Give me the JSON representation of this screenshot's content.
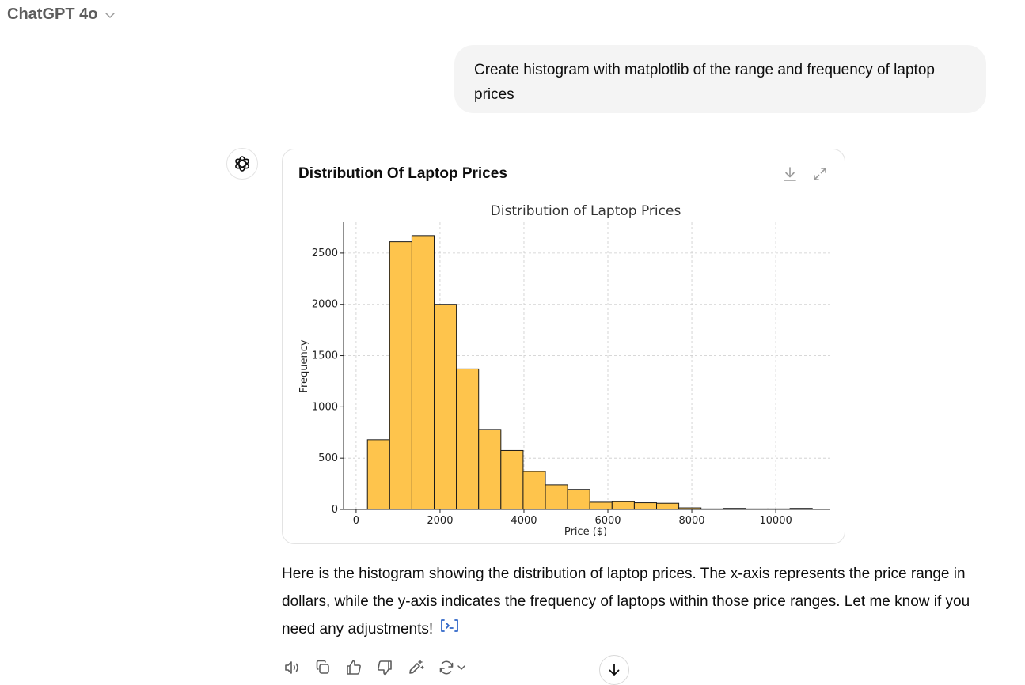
{
  "header": {
    "model_name": "ChatGPT 4o"
  },
  "user_message": "Create histogram with matplotlib of the range and frequency of laptop prices",
  "chart_card": {
    "title": "Distribution Of Laptop Prices"
  },
  "assistant_message": "Here is the histogram showing the distribution of laptop prices. The x-axis represents the price range in dollars, while the y-axis indicates the frequency of laptops within those price ranges. Let me know if you need any adjustments!",
  "icons": {
    "model_dropdown": "chevron-down-icon",
    "avatar": "openai-logo-icon",
    "download": "download-icon",
    "expand": "expand-icon",
    "citation": "code-citation-icon",
    "read_aloud": "speaker-icon",
    "copy": "copy-icon",
    "thumbs_up": "thumbs-up-icon",
    "thumbs_down": "thumbs-down-icon",
    "edit": "edit-magic-icon",
    "regenerate": "regenerate-icon",
    "scroll": "arrow-down-icon"
  },
  "colors": {
    "bar_fill": "#fec44c",
    "bar_edge": "#1a1a1a",
    "grid": "#cccccc",
    "citation": "#2f66c8"
  },
  "chart_data": {
    "type": "bar",
    "title": "Distribution of Laptop Prices",
    "xlabel": "Price ($)",
    "ylabel": "Frequency",
    "xlim": [
      -300,
      11300
    ],
    "ylim": [
      0,
      2800
    ],
    "grid": true,
    "grid_style": "dashed",
    "xticks": [
      0,
      2000,
      4000,
      6000,
      8000,
      10000
    ],
    "yticks": [
      0,
      500,
      1000,
      1500,
      2000,
      2500
    ],
    "bin_edges": [
      270,
      800,
      1330,
      1860,
      2390,
      2920,
      3450,
      3980,
      4510,
      5040,
      5570,
      6100,
      6630,
      7160,
      7690,
      8220,
      8750,
      9280,
      9810,
      10340,
      10870
    ],
    "values": [
      680,
      2610,
      2670,
      2000,
      1370,
      780,
      575,
      370,
      240,
      195,
      70,
      75,
      65,
      60,
      15,
      5,
      10,
      5,
      5,
      10
    ]
  }
}
